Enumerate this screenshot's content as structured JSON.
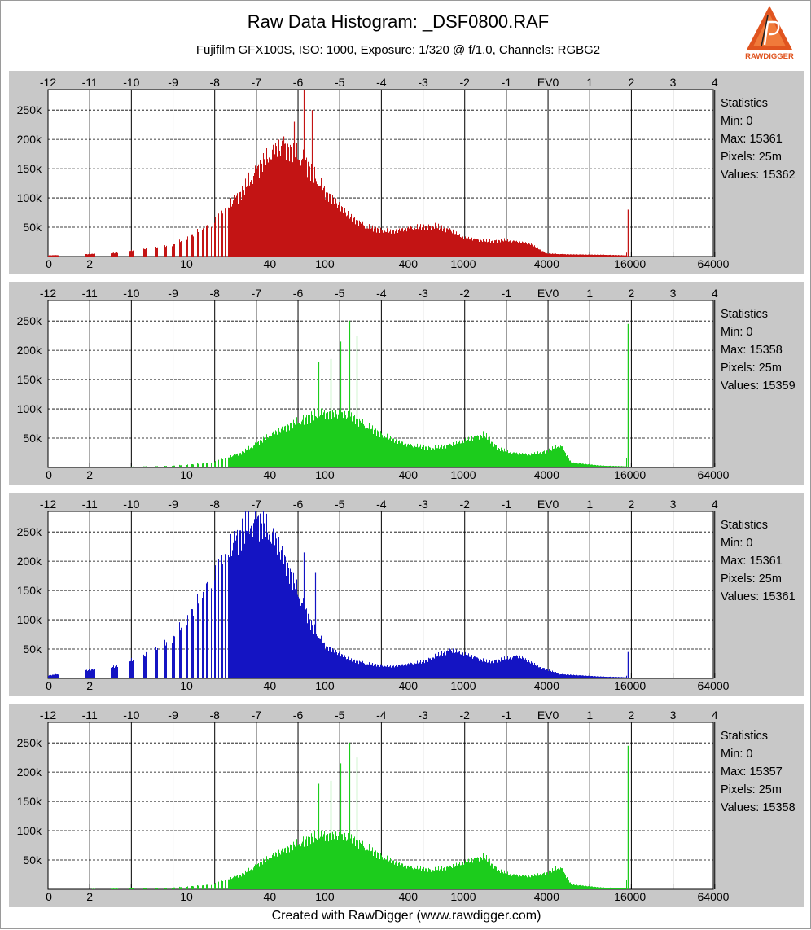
{
  "header": {
    "title": "Raw Data Histogram: _DSF0800.RAF",
    "subtitle": "Fujifilm GFX100S, ISO: 1000, Exposure: 1/320 @ f/1.0, Channels: RGBG2"
  },
  "footer": {
    "text": "Created with RawDigger (www.rawdigger.com)"
  },
  "logo": {
    "text": "RAWDIGGER",
    "icon": "rawdigger-logo-icon"
  },
  "colors": {
    "R": "#c31414",
    "G": "#1ccc1c",
    "B": "#1414c3",
    "G2": "#1ccc1c",
    "panel_bg": "#c8c8c8"
  },
  "chart_data": [
    {
      "type": "bar",
      "channel": "R",
      "x_scale": "log2",
      "x_ticks": [
        0,
        2,
        10,
        40,
        100,
        400,
        1000,
        4000,
        16000,
        64000
      ],
      "ev_ticks": [
        "-12",
        "-11",
        "-10",
        "-9",
        "-8",
        "-7",
        "-6",
        "-5",
        "-4",
        "-3",
        "-2",
        "-1",
        "EV0",
        "1",
        "2",
        "3",
        "4"
      ],
      "y_ticks": [
        "50k",
        "100k",
        "150k",
        "200k",
        "250k"
      ],
      "ylim": [
        0,
        285000
      ],
      "grid": true,
      "statistics": {
        "label": "Statistics",
        "min": "Min: 0",
        "max": "Max: 15361",
        "pixels": "Pixels: 25m",
        "values": "Values: 15362"
      },
      "profile": {
        "x": [
          1.5,
          3,
          8,
          15,
          25,
          35,
          45,
          55,
          70,
          100,
          150,
          200,
          300,
          400,
          600,
          800,
          1000,
          1500,
          2000,
          3000,
          4000,
          6000,
          10000,
          15000,
          15360
        ],
        "y": [
          3000,
          6000,
          20000,
          55000,
          110000,
          160000,
          185000,
          182000,
          165000,
          110000,
          68000,
          50000,
          42000,
          48000,
          52000,
          45000,
          32000,
          26000,
          28000,
          22000,
          5000,
          3500,
          3000,
          2000,
          80000
        ]
      },
      "spikes": {
        "x": [
          50,
          60,
          70,
          80
        ],
        "y": [
          205000,
          230000,
          285000,
          250000
        ]
      }
    },
    {
      "type": "bar",
      "channel": "G",
      "x_scale": "log2",
      "x_ticks": [
        0,
        2,
        10,
        40,
        100,
        400,
        1000,
        4000,
        16000,
        64000
      ],
      "ev_ticks": [
        "-12",
        "-11",
        "-10",
        "-9",
        "-8",
        "-7",
        "-6",
        "-5",
        "-4",
        "-3",
        "-2",
        "-1",
        "EV0",
        "1",
        "2",
        "3",
        "4"
      ],
      "y_ticks": [
        "50k",
        "100k",
        "150k",
        "200k",
        "250k"
      ],
      "ylim": [
        0,
        285000
      ],
      "grid": true,
      "statistics": {
        "label": "Statistics",
        "min": "Min: 0",
        "max": "Max: 15358",
        "pixels": "Pixels: 25m",
        "values": "Values: 15359"
      },
      "profile": {
        "x": [
          8,
          15,
          25,
          40,
          60,
          80,
          100,
          130,
          160,
          200,
          300,
          400,
          600,
          800,
          1000,
          1400,
          1800,
          2200,
          3000,
          4000,
          5000,
          6000,
          10000,
          15000,
          15358
        ],
        "y": [
          3000,
          8000,
          25000,
          55000,
          75000,
          88000,
          92000,
          90000,
          85000,
          70000,
          48000,
          38000,
          33000,
          38000,
          45000,
          56000,
          32000,
          25000,
          22000,
          28000,
          38000,
          8000,
          3000,
          2000,
          245000
        ]
      },
      "spikes": {
        "x": [
          90,
          110,
          130,
          150,
          170
        ],
        "y": [
          180000,
          185000,
          215000,
          250000,
          225000
        ]
      }
    },
    {
      "type": "bar",
      "channel": "B",
      "x_scale": "log2",
      "x_ticks": [
        0,
        2,
        10,
        40,
        100,
        400,
        1000,
        4000,
        16000,
        64000
      ],
      "ev_ticks": [
        "-12",
        "-11",
        "-10",
        "-9",
        "-8",
        "-7",
        "-6",
        "-5",
        "-4",
        "-3",
        "-2",
        "-1",
        "EV0",
        "1",
        "2",
        "3",
        "4"
      ],
      "y_ticks": [
        "50k",
        "100k",
        "150k",
        "200k",
        "250k"
      ],
      "ylim": [
        0,
        285000
      ],
      "grid": true,
      "statistics": {
        "label": "Statistics",
        "min": "Min: 0",
        "max": "Max: 15361",
        "pixels": "Pixels: 25m",
        "values": "Values: 15361"
      },
      "profile": {
        "x": [
          1,
          3,
          5,
          8,
          12,
          18,
          25,
          30,
          35,
          45,
          60,
          80,
          100,
          150,
          200,
          300,
          500,
          800,
          1000,
          1500,
          2500,
          3500,
          5000,
          10000,
          15000,
          15361
        ],
        "y": [
          5000,
          20000,
          40000,
          70000,
          130000,
          200000,
          250000,
          268000,
          265000,
          230000,
          160000,
          90000,
          55000,
          32000,
          25000,
          20000,
          28000,
          48000,
          42000,
          28000,
          38000,
          20000,
          7000,
          3000,
          2000,
          45000
        ]
      },
      "spikes": {
        "x": [
          70,
          85
        ],
        "y": [
          215000,
          180000
        ]
      }
    },
    {
      "type": "bar",
      "channel": "G2",
      "x_scale": "log2",
      "x_ticks": [
        0,
        2,
        10,
        40,
        100,
        400,
        1000,
        4000,
        16000,
        64000
      ],
      "ev_ticks": [
        "-12",
        "-11",
        "-10",
        "-9",
        "-8",
        "-7",
        "-6",
        "-5",
        "-4",
        "-3",
        "-2",
        "-1",
        "EV0",
        "1",
        "2",
        "3",
        "4"
      ],
      "y_ticks": [
        "50k",
        "100k",
        "150k",
        "200k",
        "250k"
      ],
      "ylim": [
        0,
        285000
      ],
      "grid": true,
      "statistics": {
        "label": "Statistics",
        "min": "Min: 0",
        "max": "Max: 15357",
        "pixels": "Pixels: 25m",
        "values": "Values: 15358"
      },
      "profile": {
        "x": [
          8,
          15,
          25,
          40,
          60,
          80,
          100,
          130,
          160,
          200,
          300,
          400,
          600,
          800,
          1000,
          1400,
          1800,
          2200,
          3000,
          4000,
          5000,
          6000,
          10000,
          15000,
          15357
        ],
        "y": [
          3000,
          8000,
          25000,
          55000,
          75000,
          88000,
          92000,
          90000,
          85000,
          70000,
          48000,
          38000,
          33000,
          38000,
          45000,
          56000,
          32000,
          25000,
          22000,
          28000,
          38000,
          8000,
          3000,
          2000,
          245000
        ]
      },
      "spikes": {
        "x": [
          90,
          110,
          130,
          150,
          170
        ],
        "y": [
          180000,
          185000,
          215000,
          250000,
          225000
        ]
      }
    }
  ]
}
